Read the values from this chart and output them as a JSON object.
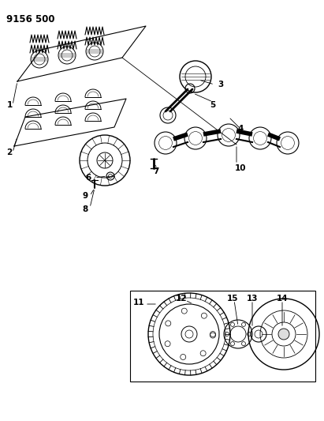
{
  "title": "9156 500",
  "bg_color": "#ffffff",
  "fig_width": 4.11,
  "fig_height": 5.33,
  "dpi": 100,
  "lc": "black",
  "lw": 0.8
}
